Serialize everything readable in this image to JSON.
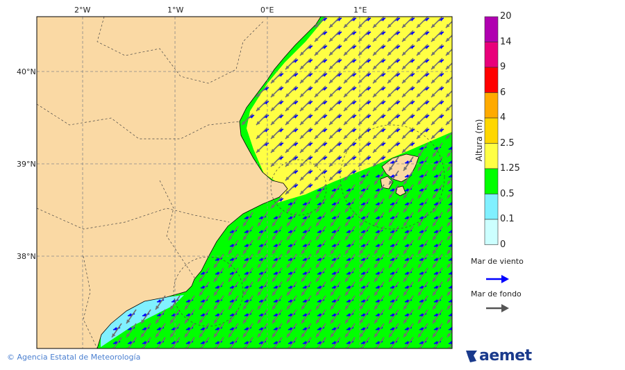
{
  "map": {
    "lon_labels": [
      "2°W",
      "1°W",
      "0°E",
      "1°E"
    ],
    "lat_labels": [
      "40°N",
      "39°N",
      "38°N"
    ],
    "colors": {
      "land": "#fad9a4",
      "sea_green": "#00ff00",
      "sea_yellow": "#ffff44",
      "sea_cyan": "#80f0ff",
      "wind_sea_arrow": "#0000ff",
      "swell_arrow": "#707070"
    }
  },
  "colorbar": {
    "title": "Altura (m)",
    "ticks": [
      "20",
      "14",
      "9",
      "6",
      "4",
      "2.5",
      "1.25",
      "0.5",
      "0.1",
      "0"
    ],
    "colors": [
      "#b000b0",
      "#e8007a",
      "#ff0000",
      "#ffaa00",
      "#ffd700",
      "#ffff44",
      "#00ff00",
      "#80f0ff",
      "#ccffff"
    ]
  },
  "legend": {
    "wind_sea": "Mar de viento",
    "swell": "Mar de fondo"
  },
  "footer": {
    "credit": "© Agencia Estatal de Meteorología",
    "logo": "aemet"
  }
}
